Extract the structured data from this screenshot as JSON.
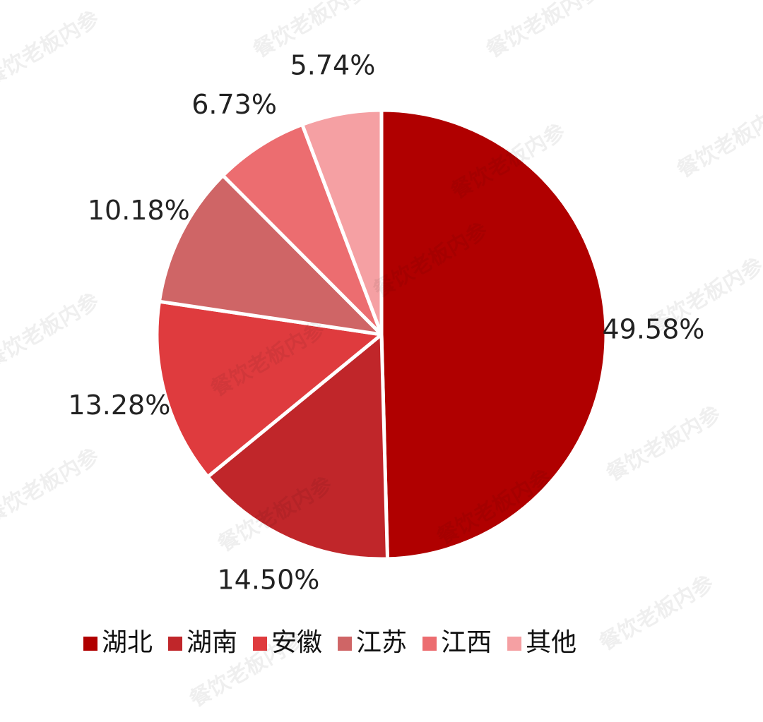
{
  "chart_data": {
    "type": "pie",
    "categories": [
      "湖北",
      "湖南",
      "安徽",
      "江苏",
      "江西",
      "其他"
    ],
    "values": [
      49.58,
      14.5,
      13.28,
      10.18,
      6.73,
      5.74
    ],
    "value_labels": [
      "49.58%",
      "14.50%",
      "13.28%",
      "10.18%",
      "6.73%",
      "5.74%"
    ],
    "colors": [
      "#b00000",
      "#c0262a",
      "#df3b3e",
      "#cf6566",
      "#ec6d70",
      "#f5a0a3"
    ],
    "legend": "bottom",
    "watermark": "餐饮老板内参"
  }
}
